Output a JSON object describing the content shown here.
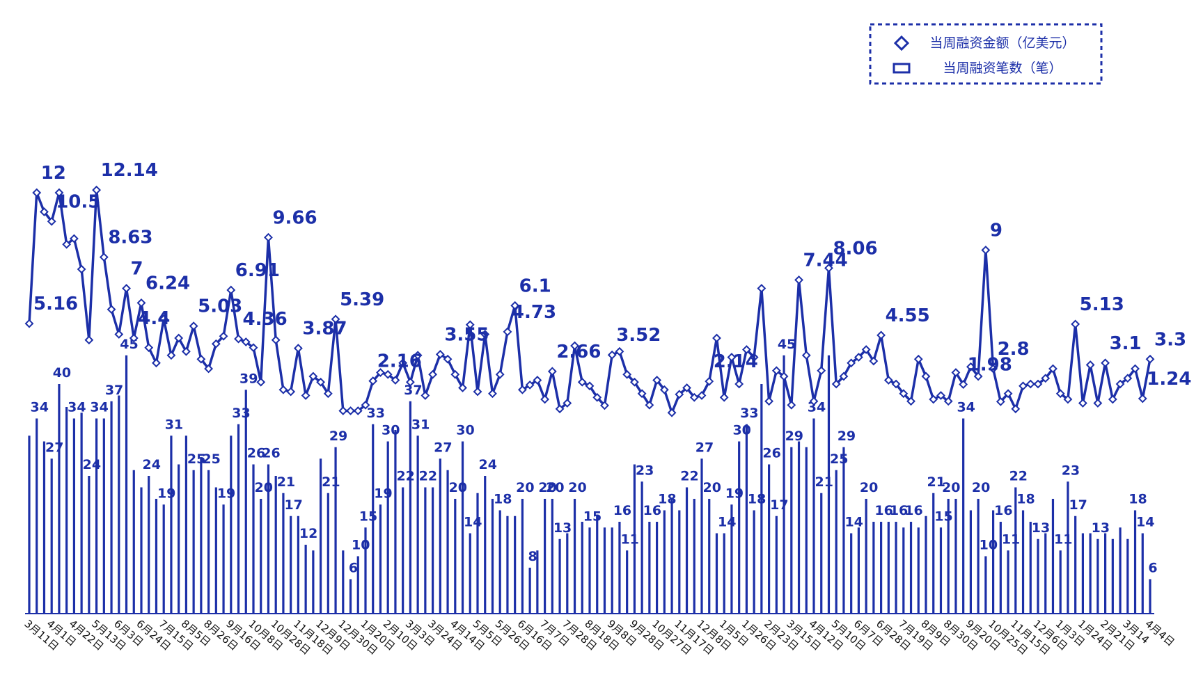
{
  "chart_data": {
    "type": "bar",
    "categories": [
      "3月11日",
      null,
      null,
      "4月1日",
      null,
      null,
      "4月22日",
      null,
      null,
      "5月13日",
      null,
      null,
      "6月3日",
      null,
      null,
      "6月24日",
      null,
      null,
      "7月15日",
      null,
      null,
      "8月5日",
      null,
      null,
      "8月26日",
      null,
      null,
      "9月16日",
      null,
      null,
      "10月8日",
      null,
      null,
      "10月28日",
      null,
      null,
      "11月18日",
      null,
      null,
      "12月9日",
      null,
      null,
      "12月30日",
      null,
      null,
      "1月20日",
      null,
      null,
      "2月10日",
      null,
      null,
      "3月3日",
      null,
      null,
      "3月24日",
      null,
      null,
      "4月14日",
      null,
      null,
      "5月5日",
      null,
      null,
      "5月26日",
      null,
      null,
      "6月16日",
      null,
      null,
      "7月7日",
      null,
      null,
      "7月28日",
      null,
      null,
      "8月18日",
      null,
      null,
      "9月8日",
      null,
      null,
      "9月28日",
      null,
      null,
      "10月27日",
      null,
      null,
      "11月17日",
      null,
      null,
      "12月8日",
      null,
      null,
      "1月5日",
      null,
      null,
      "1月26日",
      null,
      null,
      "2月23日",
      null,
      null,
      "3月15日",
      null,
      null,
      "4月12日",
      null,
      null,
      "5月10日",
      null,
      null,
      "6月7日",
      null,
      null,
      "6月28日",
      null,
      null,
      "7月19日",
      null,
      null,
      "8月9日",
      null,
      null,
      "8月30日",
      null,
      null,
      "9月20日",
      null,
      null,
      "10月25日",
      null,
      null,
      "11月15日",
      null,
      null,
      "12月6日",
      null,
      null,
      "1月3日",
      null,
      null,
      "1月24日",
      null,
      null,
      "2月21日",
      null,
      null,
      "3月14",
      null,
      null,
      "4月4日"
    ],
    "series": [
      {
        "name": "当周融资金额（亿美元）",
        "type": "line",
        "axis": "y2",
        "color": "#1c2fa8",
        "values": [
          5.16,
          12,
          11,
          10.5,
          12,
          9.3,
          9.6,
          8,
          4.3,
          12.14,
          8.63,
          5.9,
          4.6,
          7,
          4.4,
          6.24,
          3.9,
          3.1,
          5.4,
          3.5,
          4.4,
          3.7,
          5.03,
          3.3,
          2.8,
          4.1,
          4.5,
          6.91,
          4.36,
          4.2,
          3.9,
          2.1,
          9.66,
          4.3,
          1.7,
          1.6,
          3.87,
          1.4,
          2.4,
          2.1,
          1.5,
          5.39,
          0.6,
          0.6,
          0.6,
          0.9,
          2.16,
          2.6,
          2.5,
          2.2,
          3.1,
          2.1,
          3.5,
          1.4,
          2.5,
          3.55,
          3.3,
          2.5,
          1.8,
          5.1,
          1.6,
          4.6,
          1.5,
          2.5,
          4.73,
          6.1,
          1.7,
          1.95,
          2.2,
          1.2,
          2.66,
          0.7,
          1.0,
          4.0,
          2.1,
          1.9,
          1.3,
          0.88,
          3.52,
          3.7,
          2.5,
          2.1,
          1.5,
          0.9,
          2.2,
          1.7,
          0.5,
          1.46,
          1.8,
          1.3,
          1.4,
          2.14,
          4.4,
          1.3,
          3.4,
          2.0,
          3.8,
          3.4,
          7.0,
          1.1,
          2.7,
          2.4,
          0.9,
          7.44,
          3.5,
          1.1,
          2.7,
          8.06,
          2.0,
          2.4,
          3.1,
          3.4,
          3.8,
          3.2,
          4.55,
          2.2,
          2.0,
          1.5,
          1.1,
          3.3,
          2.4,
          1.2,
          1.4,
          1.1,
          2.6,
          1.98,
          2.9,
          2.4,
          9,
          2.8,
          1.08,
          1.5,
          0.7,
          1.9,
          2.0,
          2.0,
          2.3,
          2.8,
          1.5,
          1.2,
          5.13,
          1.0,
          3.0,
          1.0,
          3.1,
          1.2,
          2.0,
          2.3,
          2.8,
          1.24,
          3.3
        ],
        "value_labels": [
          "5.16",
          "12",
          null,
          "10.5",
          null,
          null,
          null,
          null,
          null,
          "12.14",
          "8.63",
          null,
          null,
          "7",
          "4.4",
          "6.24",
          null,
          null,
          null,
          null,
          null,
          null,
          "5.03",
          null,
          null,
          null,
          null,
          "6.91",
          "4.36",
          null,
          null,
          null,
          "9.66",
          null,
          null,
          null,
          "3.87",
          null,
          null,
          null,
          null,
          "5.39",
          null,
          null,
          null,
          null,
          "2.16",
          null,
          null,
          null,
          null,
          null,
          null,
          null,
          null,
          "3.55",
          null,
          null,
          null,
          null,
          null,
          null,
          null,
          null,
          "4.73",
          "6.1",
          null,
          null,
          null,
          null,
          "2.66",
          null,
          null,
          null,
          null,
          null,
          null,
          null,
          "3.52",
          null,
          null,
          null,
          null,
          null,
          null,
          null,
          null,
          null,
          null,
          null,
          null,
          "2.14",
          null,
          null,
          null,
          null,
          null,
          null,
          null,
          null,
          null,
          null,
          null,
          "7.44",
          null,
          null,
          null,
          "8.06",
          null,
          null,
          null,
          null,
          null,
          null,
          "4.55",
          null,
          null,
          null,
          null,
          null,
          null,
          null,
          null,
          null,
          null,
          "1.98",
          null,
          null,
          "9",
          "2.8",
          null,
          null,
          null,
          null,
          null,
          null,
          null,
          null,
          null,
          null,
          "5.13",
          null,
          null,
          null,
          "3.1",
          null,
          null,
          null,
          null,
          "1.24",
          "3.3"
        ]
      },
      {
        "name": "当周融资笔数（笔）",
        "type": "bar",
        "color": "#1c2fa8",
        "values": [
          31,
          34,
          30,
          27,
          40,
          36,
          34,
          35,
          24,
          34,
          34,
          37,
          38,
          45,
          25,
          22,
          24,
          20,
          19,
          31,
          26,
          31,
          25,
          27,
          25,
          22,
          19,
          31,
          33,
          39,
          26,
          20,
          26,
          24,
          21,
          17,
          17,
          12,
          11,
          27,
          21,
          29,
          11,
          6,
          10,
          15,
          33,
          19,
          30,
          32,
          22,
          37,
          31,
          22,
          22,
          27,
          25,
          20,
          30,
          14,
          21,
          24,
          20,
          18,
          17,
          17,
          20,
          8,
          11,
          20,
          20,
          13,
          14,
          20,
          16,
          15,
          17,
          15,
          15,
          16,
          11,
          26,
          23,
          16,
          16,
          18,
          20,
          18,
          22,
          20,
          27,
          20,
          14,
          14,
          19,
          30,
          33,
          18,
          40,
          26,
          17,
          45,
          29,
          30,
          29,
          34,
          21,
          45,
          25,
          29,
          14,
          15,
          20,
          16,
          16,
          16,
          16,
          15,
          16,
          15,
          17,
          21,
          15,
          20,
          20,
          34,
          18,
          20,
          10,
          18,
          16,
          11,
          22,
          18,
          16,
          13,
          14,
          20,
          11,
          23,
          17,
          14,
          14,
          13,
          14,
          13,
          15,
          13,
          18,
          14,
          6
        ],
        "value_labels": [
          null,
          "34",
          null,
          "27",
          "40",
          null,
          "34",
          null,
          "24",
          "34",
          null,
          "37",
          null,
          "45",
          null,
          null,
          "24",
          null,
          "19",
          "31",
          null,
          null,
          "25",
          null,
          "25",
          null,
          "19",
          null,
          "33",
          "39",
          "26",
          "20",
          "26",
          null,
          "21",
          "17",
          null,
          "12",
          null,
          null,
          "21",
          "29",
          null,
          "6",
          "10",
          "15",
          "33",
          "19",
          "30",
          null,
          "22",
          "37",
          "31",
          "22",
          null,
          "27",
          null,
          "20",
          "30",
          "14",
          null,
          "24",
          null,
          "18",
          null,
          null,
          "20",
          "8",
          null,
          "20",
          "20",
          "13",
          null,
          "20",
          null,
          "15",
          null,
          null,
          null,
          "16",
          "11",
          null,
          "23",
          "16",
          null,
          "18",
          null,
          null,
          "22",
          null,
          "27",
          "20",
          null,
          "14",
          "19",
          "30",
          "33",
          "18",
          null,
          "26",
          "17",
          "45",
          "29",
          null,
          null,
          "34",
          "21",
          null,
          "25",
          "29",
          "14",
          null,
          "20",
          null,
          "16",
          null,
          "16",
          null,
          "16",
          null,
          null,
          "21",
          "15",
          "20",
          null,
          "34",
          null,
          "20",
          "10",
          null,
          "16",
          "11",
          "22",
          "18",
          null,
          "13",
          null,
          null,
          "11",
          "23",
          "17",
          null,
          null,
          "13",
          null,
          null,
          null,
          null,
          "18",
          "14",
          "6"
        ]
      }
    ],
    "ylim": [
      0,
      80
    ],
    "y2lim": [
      -10,
      14
    ],
    "legend": "top-right"
  }
}
